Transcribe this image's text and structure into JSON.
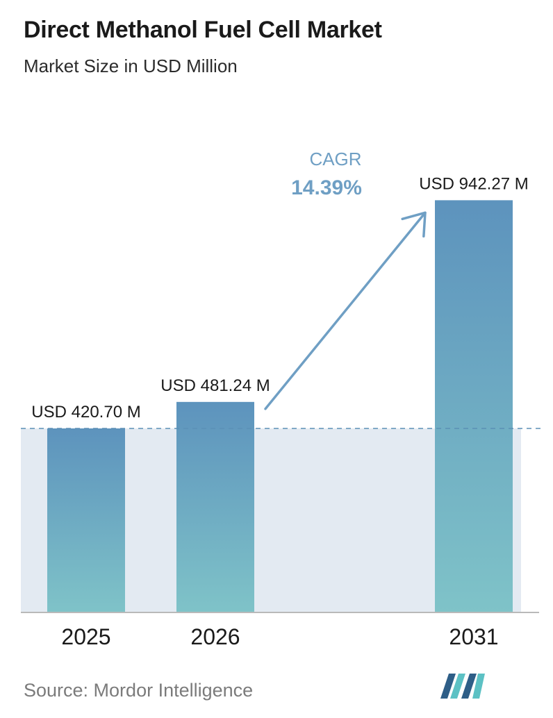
{
  "title": "Direct Methanol Fuel Cell Market",
  "subtitle": "Market Size in USD Million",
  "source": "Source:  Mordor Intelligence",
  "colors": {
    "bar_top": "#5d93bd",
    "bar_bottom": "#7fc3c8",
    "band": "#e3eaf2",
    "arrow": "#6f9fc4",
    "dashed_line": "#5b8fb5",
    "axis": "#b9b9b9",
    "logo_dark": "#2e5e87",
    "logo_light": "#5cc1c4"
  },
  "logo_icon": "mordor-intelligence-logo",
  "chart_data": {
    "type": "bar",
    "categories": [
      "2025",
      "2026",
      "2031"
    ],
    "values": [
      420.7,
      481.24,
      942.27
    ],
    "data_labels": [
      "USD 420.70 M",
      "USD 481.24 M",
      "USD 942.27 M"
    ],
    "title": "Direct Methanol Fuel Cell Market",
    "subtitle": "Market Size in USD Million",
    "xlabel": "",
    "ylabel": "",
    "ylim": [
      0,
      1000
    ],
    "grid": false,
    "reference_line": {
      "value": 420.7,
      "style": "dashed"
    },
    "annotation": {
      "label": "CAGR",
      "value": "14.39%",
      "from": "2026",
      "to": "2031"
    }
  }
}
